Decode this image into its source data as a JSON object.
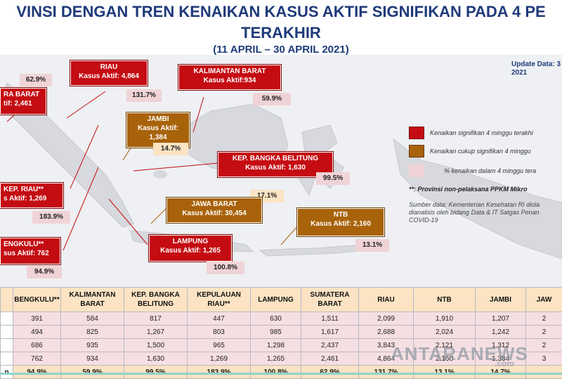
{
  "header": {
    "title_line1": "VINSI DENGAN TREN KENAIKAN KASUS AKTIF SIGNIFIKAN PADA 4 PE",
    "title_line2": "TERAKHIR",
    "title_line3": "(11 APRIL – 30 APRIL 2021)"
  },
  "update": {
    "line1": "Update Data: 3",
    "line2": "2021"
  },
  "callouts": {
    "riau": {
      "name": "RIAU",
      "value": "Kasus Aktif: 4,864",
      "pct": "131.7%"
    },
    "kalbar": {
      "name": "KALIMANTAN BARAT",
      "value": "Kasus Aktif:934",
      "pct": "59.9%"
    },
    "sumbar": {
      "name": "RA BARAT",
      "value": "tif: 2,461",
      "pct": "62.9%"
    },
    "jambi": {
      "name": "JAMBI",
      "value1": "Kasus Aktif:",
      "value2": "1,384",
      "pct": "14.7%"
    },
    "babel": {
      "name": "KEP. BANGKA BELITUNG",
      "value": "Kasus Aktif: 1,630",
      "pct": "99.5%"
    },
    "kepri": {
      "name": "KEP. RIAU**",
      "value": "s Aktif: 1,269",
      "pct": "183.9%"
    },
    "jabar": {
      "name": "JAWA BARAT",
      "value": "Kasus Aktif: 30,454",
      "pct": "17.1%"
    },
    "ntb": {
      "name": "NTB",
      "value": "Kasus Aktif: 2,160",
      "pct": "13.1%"
    },
    "bengkulu": {
      "name": "ENGKULU**",
      "value": "sus Aktif: 762",
      "pct": "94.9%"
    },
    "lampung": {
      "name": "LAMPUNG",
      "value": "Kasus Aktif: 1,265",
      "pct": "100.8%"
    }
  },
  "legend": {
    "item1": "Kenaikan signifikan 4 minggu terakhi",
    "item2": "Kenaikan cukup signifikan 4 minggu",
    "item3": "% kenaikan dalam 4 minggu tera",
    "note": "**: Provinsi non-pelaksana PPKM Mikro",
    "source1": "Sumber data: Kementerian Kesehatan RI diola",
    "source2": "dianalisis oleh bidang Data & IT Satgas Penan",
    "source3": "COVID-19",
    "colors": {
      "red": "#c40c12",
      "brown": "#a8620a",
      "pink": "#f0d3d6"
    }
  },
  "table": {
    "headers": [
      "",
      "BENGKULU**",
      "KALIMANTAN BARAT",
      "KEP. BANGKA BELITUNG",
      "KEPULAUAN RIAU**",
      "LAMPUNG",
      "SUMATERA BARAT",
      "RIAU",
      "NTB",
      "JAMBI",
      "JAW"
    ],
    "rows": [
      [
        "",
        "391",
        "584",
        "817",
        "447",
        "630",
        "1,511",
        "2,099",
        "1,910",
        "1,207",
        "2"
      ],
      [
        "",
        "494",
        "825",
        "1,267",
        "803",
        "985",
        "1,617",
        "2,688",
        "2,024",
        "1,242",
        "2"
      ],
      [
        "",
        "686",
        "935",
        "1,500",
        "965",
        "1,298",
        "2,437",
        "3,843",
        "2,121",
        "1,312",
        "2"
      ],
      [
        "",
        "762",
        "934",
        "1,630",
        "1,269",
        "1,265",
        "2,461",
        "4,864",
        "2,160",
        "1,384",
        "3"
      ],
      [
        "n",
        "94.9%",
        "59.9%",
        "99.5%",
        "183.9%",
        "100.8%",
        "62.9%",
        "131.7%",
        "13.1%",
        "14.7%",
        ""
      ]
    ]
  },
  "watermark": {
    "main": "ANTARANEWS",
    "sub": ".com"
  }
}
